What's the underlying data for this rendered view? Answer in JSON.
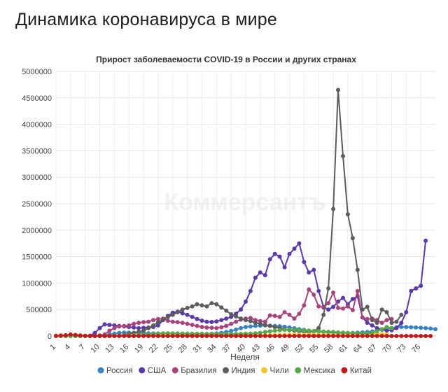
{
  "page": {
    "title": "Динамика коронавируса в мире"
  },
  "watermark": "Коммерсантъ",
  "chart_data": {
    "type": "line",
    "title": "Прирост заболеваемости COVID-19 в России и других странах",
    "xlabel": "Неделя",
    "ylabel": "",
    "xlim": [
      1,
      79
    ],
    "ylim": [
      0,
      5000000
    ],
    "yticks": [
      0,
      500000,
      1000000,
      1500000,
      2000000,
      2500000,
      3000000,
      3500000,
      4000000,
      4500000,
      5000000
    ],
    "xticks": [
      1,
      4,
      7,
      10,
      13,
      16,
      19,
      22,
      25,
      28,
      31,
      34,
      37,
      40,
      43,
      46,
      49,
      52,
      55,
      58,
      61,
      64,
      67,
      70,
      73,
      76
    ],
    "grid": true,
    "legend_position": "bottom",
    "series": [
      {
        "name": "Россия",
        "color": "#3a83c0",
        "start": 1,
        "values": [
          0,
          0,
          0,
          0,
          0,
          0,
          0,
          2000,
          5000,
          10000,
          16000,
          30000,
          45000,
          60000,
          65000,
          62000,
          60000,
          58000,
          56000,
          52000,
          50000,
          48000,
          46000,
          44000,
          42000,
          40000,
          39000,
          38000,
          37000,
          36000,
          36000,
          38000,
          42000,
          48000,
          60000,
          75000,
          95000,
          120000,
          150000,
          170000,
          180000,
          190000,
          195000,
          200000,
          195000,
          190000,
          185000,
          175000,
          160000,
          145000,
          130000,
          115000,
          100000,
          90000,
          82000,
          75000,
          68000,
          62000,
          58000,
          55000,
          55000,
          58000,
          62000,
          68000,
          75000,
          85000,
          100000,
          120000,
          135000,
          150000,
          165000,
          170000,
          168000,
          165000,
          160000,
          155000,
          150000,
          140000,
          130000
        ]
      },
      {
        "name": "США",
        "color": "#5b3aa6",
        "start": 1,
        "values": [
          0,
          0,
          0,
          0,
          0,
          0,
          0,
          5000,
          60000,
          150000,
          220000,
          210000,
          200000,
          190000,
          180000,
          170000,
          160000,
          150000,
          155000,
          160000,
          170000,
          200000,
          300000,
          380000,
          440000,
          460000,
          430000,
          400000,
          360000,
          320000,
          290000,
          270000,
          265000,
          275000,
          300000,
          330000,
          360000,
          420000,
          500000,
          650000,
          850000,
          1100000,
          1200000,
          1150000,
          1450000,
          1550000,
          1500000,
          1300000,
          1550000,
          1650000,
          1750000,
          1400000,
          1200000,
          1250000,
          850000,
          550000,
          500000,
          550000,
          650000,
          720000,
          600000,
          700000,
          750000,
          350000,
          250000,
          200000,
          150000,
          120000,
          100000,
          110000,
          150000,
          250000,
          450000,
          850000,
          900000,
          950000,
          1800000
        ]
      },
      {
        "name": "Бразилия",
        "color": "#a8447c",
        "start": 1,
        "values": [
          0,
          0,
          0,
          0,
          0,
          0,
          0,
          0,
          0,
          10000,
          30000,
          100000,
          150000,
          180000,
          190000,
          200000,
          230000,
          250000,
          260000,
          270000,
          300000,
          320000,
          330000,
          290000,
          270000,
          260000,
          250000,
          230000,
          210000,
          190000,
          170000,
          160000,
          155000,
          150000,
          165000,
          190000,
          230000,
          270000,
          310000,
          330000,
          340000,
          300000,
          280000,
          270000,
          390000,
          380000,
          360000,
          450000,
          400000,
          330000,
          420000,
          580000,
          880000,
          780000,
          560000,
          540000,
          620000,
          820000,
          530000,
          520000,
          560000,
          490000,
          850000,
          350000,
          320000,
          330000,
          300000,
          250000,
          300000,
          320000
        ]
      },
      {
        "name": "Индия",
        "color": "#5c5c5c",
        "start": 1,
        "values": [
          0,
          0,
          0,
          0,
          0,
          0,
          0,
          0,
          0,
          0,
          0,
          2000,
          5000,
          10000,
          20000,
          40000,
          60000,
          80000,
          100000,
          150000,
          200000,
          260000,
          310000,
          360000,
          400000,
          450000,
          500000,
          530000,
          560000,
          600000,
          580000,
          560000,
          620000,
          600000,
          540000,
          480000,
          410000,
          370000,
          330000,
          300000,
          280000,
          250000,
          230000,
          210000,
          190000,
          170000,
          150000,
          130000,
          110000,
          100000,
          90000,
          80000,
          75000,
          90000,
          150000,
          400000,
          900000,
          2400000,
          4650000,
          3400000,
          2300000,
          1850000,
          1250000,
          500000,
          550000,
          300000,
          250000,
          500000,
          450000,
          250000,
          270000,
          400000
        ]
      },
      {
        "name": "Чили",
        "color": "#f2c232",
        "start": 1,
        "values": [
          0,
          0,
          0,
          0,
          0,
          0,
          0,
          0,
          0,
          0,
          0,
          1000,
          2000,
          4000,
          6000,
          9000,
          12000,
          16000,
          20000,
          25000,
          30000,
          33000,
          32000,
          30000,
          27000,
          25000,
          23000,
          20000,
          18000,
          16000,
          15000,
          14000,
          13000,
          12000,
          11000,
          10000,
          10000,
          10500,
          11000,
          12000,
          13000,
          14000,
          15000,
          16000,
          17000,
          18000,
          19000,
          20000,
          21000,
          22000,
          23000,
          24000,
          25000,
          26000,
          27000,
          28000,
          29000,
          30000,
          31000,
          32000,
          33000,
          34000,
          35000,
          36000,
          37000,
          38000,
          40000,
          35000,
          30000
        ]
      },
      {
        "name": "Мексика",
        "color": "#5aa64d",
        "start": 1,
        "values": [
          0,
          0,
          0,
          0,
          0,
          0,
          0,
          0,
          0,
          0,
          0,
          1000,
          2000,
          4000,
          6000,
          9000,
          13000,
          18000,
          24000,
          30000,
          38000,
          45000,
          50000,
          52000,
          50000,
          48000,
          46000,
          45000,
          44000,
          43000,
          42000,
          40000,
          38000,
          36000,
          35000,
          35000,
          36000,
          38000,
          40000,
          42000,
          45000,
          50000,
          60000,
          75000,
          90000,
          100000,
          110000,
          115000,
          118000,
          115000,
          110000,
          105000,
          100000,
          95000,
          90000,
          85000,
          80000,
          75000,
          70000,
          65000,
          60000,
          55000,
          50000,
          45000,
          45000,
          60000,
          90000,
          130000,
          170000,
          150000
        ]
      },
      {
        "name": "Китай",
        "color": "#c01a1a",
        "start": 1,
        "values": [
          4000,
          10000,
          15000,
          30000,
          20000,
          10000,
          4000,
          1000,
          500,
          400,
          300,
          300,
          300,
          300,
          300,
          300,
          300,
          300,
          300,
          300,
          300,
          300,
          300,
          300,
          300,
          300,
          300,
          300,
          300,
          300,
          300,
          300,
          300,
          300,
          300,
          300,
          300,
          300,
          300,
          300,
          300,
          300,
          300,
          300,
          300,
          300,
          300,
          300,
          300,
          300,
          300,
          300,
          300,
          300,
          300,
          300,
          300,
          300,
          300,
          300,
          300,
          300,
          300,
          300,
          300,
          300,
          300,
          300,
          300,
          300,
          300,
          300,
          300,
          300,
          300,
          300,
          300,
          300
        ]
      }
    ]
  }
}
